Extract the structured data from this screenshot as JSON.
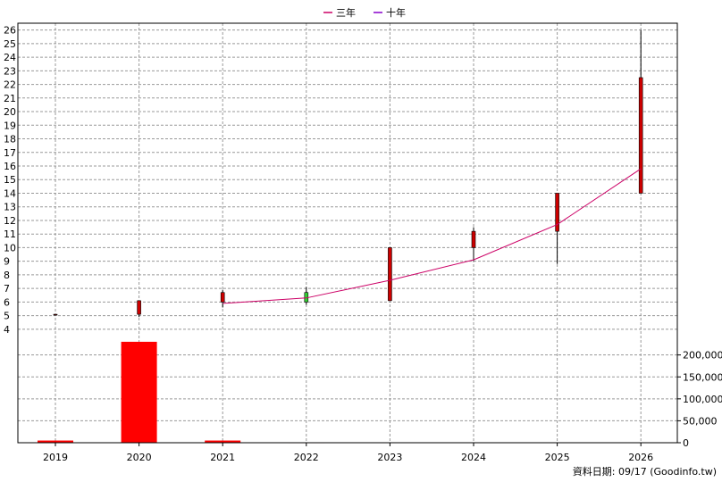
{
  "chart_data": {
    "type": "candlestick",
    "legend": [
      {
        "name": "三年",
        "color": "#cc0066"
      },
      {
        "name": "十年",
        "color": "#8800cc"
      }
    ],
    "legend_position": "top-center",
    "x_categories": [
      "2019",
      "2020",
      "2021",
      "2022",
      "2023",
      "2024",
      "2025",
      "2026"
    ],
    "price_axis": {
      "ylim": [
        3.4,
        26.5
      ],
      "ticks": [
        4,
        5,
        6,
        7,
        8,
        9,
        10,
        11,
        12,
        13,
        14,
        15,
        16,
        17,
        18,
        19,
        20,
        21,
        22,
        23,
        24,
        25,
        26
      ],
      "side": "left"
    },
    "candles": [
      {
        "x": "2019",
        "open": 5.1,
        "close": 5.1,
        "high": 5.1,
        "low": 5.1,
        "color": "#8b0000"
      },
      {
        "x": "2020",
        "open": 5.1,
        "close": 6.1,
        "high": 6.1,
        "low": 4.9,
        "color": "#cc0000"
      },
      {
        "x": "2021",
        "open": 6.0,
        "close": 6.7,
        "high": 6.9,
        "low": 5.6,
        "color": "#cc0000"
      },
      {
        "x": "2022",
        "open": 6.7,
        "close": 6.0,
        "high": 7.1,
        "low": 5.8,
        "color": "#33cc33"
      },
      {
        "x": "2023",
        "open": 6.1,
        "close": 10.0,
        "high": 10.0,
        "low": 6.1,
        "color": "#cc0000"
      },
      {
        "x": "2024",
        "open": 10.0,
        "close": 11.2,
        "high": 11.5,
        "low": 9.0,
        "color": "#cc0000"
      },
      {
        "x": "2025",
        "open": 11.2,
        "close": 14.0,
        "high": 14.0,
        "low": 8.8,
        "color": "#cc0000"
      },
      {
        "x": "2026",
        "open": 14.0,
        "close": 22.5,
        "high": 26.0,
        "low": 14.0,
        "color": "#cc0000"
      }
    ],
    "three_year_line": {
      "name": "三年",
      "color": "#cc0066",
      "points": [
        {
          "x": "2021",
          "y": 5.9
        },
        {
          "x": "2022",
          "y": 6.3
        },
        {
          "x": "2023",
          "y": 7.6
        },
        {
          "x": "2024",
          "y": 9.1
        },
        {
          "x": "2025",
          "y": 11.7
        },
        {
          "x": "2026",
          "y": 15.8
        }
      ]
    },
    "volume_axis": {
      "ylim": [
        0,
        240000
      ],
      "ticks": [
        0,
        50000,
        100000,
        150000,
        200000
      ],
      "tick_labels": [
        "0",
        "50,000",
        "100,000",
        "150,000",
        "200,000"
      ],
      "side": "right"
    },
    "volume": [
      {
        "x": "2019",
        "value": 5000
      },
      {
        "x": "2020",
        "value": 230000
      },
      {
        "x": "2021",
        "value": 5000
      },
      {
        "x": "2022",
        "value": 1000
      },
      {
        "x": "2023",
        "value": 0
      },
      {
        "x": "2024",
        "value": 0
      },
      {
        "x": "2025",
        "value": 0
      },
      {
        "x": "2026",
        "value": 0
      }
    ],
    "volume_color": "#ff0000",
    "grid": true
  },
  "footer_text": "資料日期: 09/17  (Goodinfo.tw)"
}
